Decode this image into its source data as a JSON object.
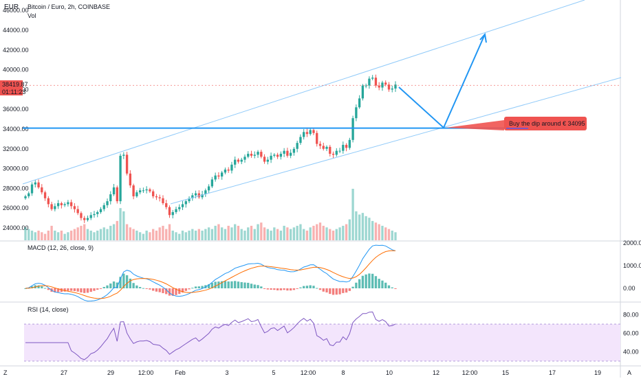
{
  "header": {
    "currency": "EUR",
    "title": "Bitcoin / Euro, 2h, COINBASE",
    "vol_label": "Vol",
    "macd_label": "MACD (12, 26, close, 9)",
    "rsi_label": "RSI (14, close)"
  },
  "price_badge": {
    "price": "38419.87",
    "countdown": "01:11:23"
  },
  "annotation": {
    "text": "Buy the dip around € 34095"
  },
  "bottom_bar": {
    "left_icon": "zoom-icon",
    "right_label": "A"
  },
  "colors": {
    "up": "#26a69a",
    "down": "#ef5350",
    "line": "#2196f3",
    "channel": "#90caf9",
    "macd": "#2196f3",
    "signal": "#ff6d00",
    "rsi": "#7e57c2",
    "rsi_band": "#f3e5fc",
    "badge": "#ef5350"
  },
  "chart_data": [
    {
      "type": "candlestick",
      "title": "Bitcoin / Euro, 2h, COINBASE",
      "ylabel": "EUR",
      "ylim": [
        23000,
        46000
      ],
      "yticks": [
        "46000.00",
        "44000.00",
        "42000.00",
        "40000.00",
        "38000.00",
        "36000.00",
        "34000.00",
        "32000.00",
        "30000.00",
        "28000.00",
        "26000.00",
        "24000.00"
      ],
      "x_ticks": [
        "27",
        "29",
        "12:00",
        "Feb",
        "3",
        "5",
        "12:00",
        "8",
        "10",
        "12",
        "12:00",
        "15",
        "17",
        "19"
      ],
      "close_series": [
        27200,
        27500,
        28400,
        28600,
        28100,
        27600,
        27000,
        26400,
        25900,
        26200,
        26500,
        26300,
        26400,
        26600,
        26200,
        25900,
        25500,
        25000,
        24800,
        25000,
        25300,
        25400,
        25600,
        25900,
        26300,
        26700,
        27400,
        28100,
        26700,
        31300,
        31400,
        29500,
        28300,
        27200,
        27600,
        27800,
        27800,
        27900,
        27700,
        27200,
        27100,
        27000,
        26500,
        26100,
        25300,
        25600,
        25900,
        26100,
        26400,
        26700,
        27000,
        27300,
        27500,
        27100,
        27400,
        27800,
        28200,
        28900,
        29300,
        29200,
        29600,
        29900,
        29800,
        30400,
        30900,
        30700,
        30900,
        31200,
        31500,
        31300,
        31400,
        31700,
        31200,
        30700,
        30900,
        31300,
        31400,
        31200,
        31500,
        31800,
        31300,
        31600,
        32000,
        32600,
        33200,
        33700,
        33500,
        33900,
        33600,
        32500,
        32300,
        32000,
        32200,
        31500,
        31400,
        31800,
        31800,
        32400,
        32100,
        32900,
        35100,
        36200,
        37100,
        38400,
        38400,
        39100,
        39200,
        38400,
        38200,
        38700,
        38500,
        38000,
        38100,
        38500
      ],
      "volume_relative": [
        0.4,
        0.35,
        0.3,
        0.25,
        0.3,
        0.25,
        0.2,
        0.3,
        0.45,
        0.3,
        0.25,
        0.3,
        0.2,
        0.25,
        0.3,
        0.35,
        0.4,
        0.45,
        0.5,
        0.35,
        0.3,
        0.25,
        0.3,
        0.35,
        0.4,
        0.35,
        0.45,
        0.5,
        0.6,
        1.0,
        0.9,
        0.5,
        0.4,
        0.35,
        0.3,
        0.25,
        0.2,
        0.3,
        0.25,
        0.35,
        0.3,
        0.4,
        0.45,
        0.35,
        0.5,
        0.3,
        0.25,
        0.2,
        0.3,
        0.25,
        0.3,
        0.35,
        0.3,
        0.35,
        0.3,
        0.35,
        0.4,
        0.35,
        0.45,
        0.5,
        0.4,
        0.35,
        0.45,
        0.4,
        0.5,
        0.45,
        0.35,
        0.3,
        0.4,
        0.45,
        0.35,
        0.5,
        0.55,
        0.4,
        0.35,
        0.3,
        0.4,
        0.35,
        0.3,
        0.45,
        0.4,
        0.35,
        0.4,
        0.45,
        0.5,
        0.35,
        0.3,
        0.4,
        0.45,
        0.5,
        0.55,
        0.45,
        0.4,
        0.35,
        0.3,
        0.35,
        0.4,
        0.45,
        0.5,
        0.65,
        1.6,
        0.9,
        0.8,
        0.85,
        0.75,
        0.7,
        0.6,
        0.55,
        0.5,
        0.45,
        0.4,
        0.35,
        0.3,
        0.25
      ],
      "levels": {
        "horizontal_support": 34095,
        "current_price": 38419.87
      },
      "channel": {
        "upper": {
          "from": [
            "27",
            28500
          ],
          "to": [
            "19",
            49500
          ]
        },
        "lower": {
          "from": [
            "12:00",
            26400
          ],
          "to": [
            "19",
            38000
          ]
        }
      },
      "projection": {
        "points": [
          38000,
          34095,
          43700
        ]
      }
    },
    {
      "type": "line",
      "title": "MACD (12, 26, close, 9)",
      "yticks": [
        "2000.00",
        "1000.00",
        "0.00"
      ],
      "ylim": [
        -500,
        2000
      ]
    },
    {
      "type": "line",
      "title": "RSI (14, close)",
      "yticks": [
        "80.00",
        "60.00",
        "40.00"
      ],
      "ylim": [
        30,
        85
      ],
      "band": [
        30,
        70
      ]
    }
  ]
}
